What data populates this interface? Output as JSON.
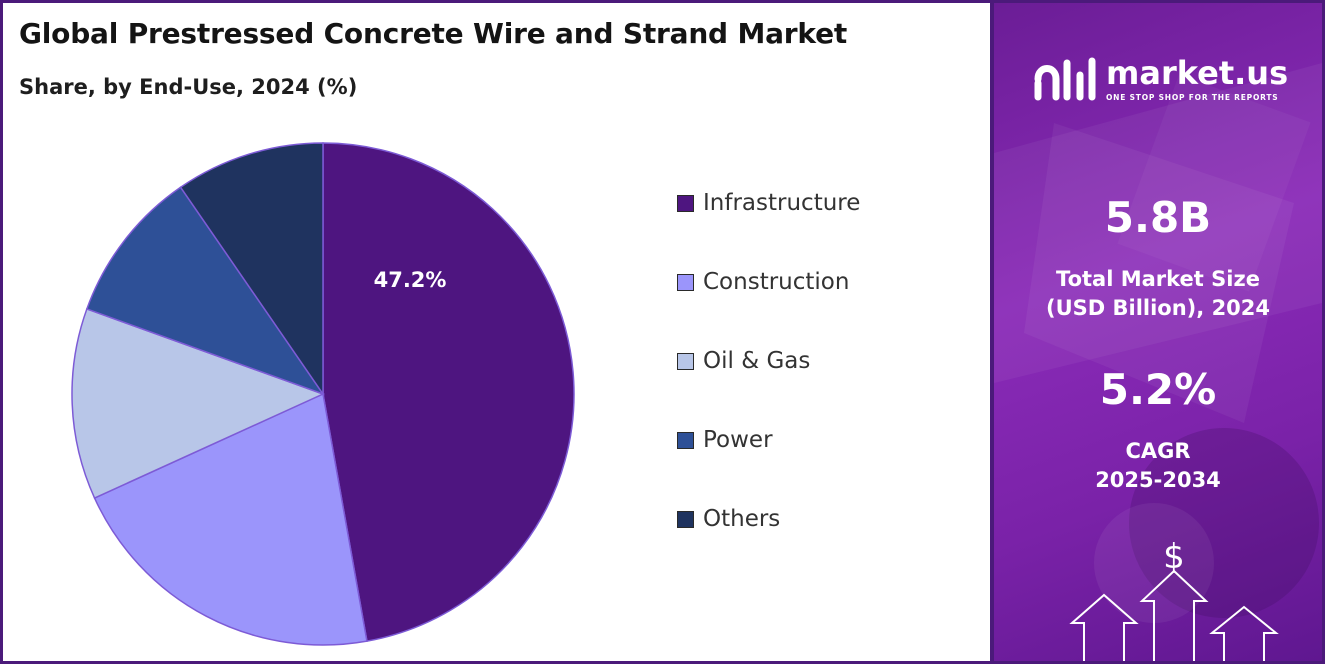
{
  "title": "Global Prestressed Concrete Wire and Strand Market",
  "subtitle": "Share, by End-Use, 2024 (%)",
  "chart_data": {
    "type": "pie",
    "title": "Global Prestressed Concrete Wire and Strand Market",
    "subtitle": "Share, by End-Use, 2024 (%)",
    "categories": [
      "Infrastructure",
      "Construction",
      "Oil & Gas",
      "Power",
      "Others"
    ],
    "values": [
      47.2,
      21.0,
      12.3,
      9.9,
      9.6
    ],
    "colors": [
      "#4e1580",
      "#9b95fb",
      "#b8c6e8",
      "#2e5097",
      "#1f335f"
    ],
    "data_labels": [
      "47.2%",
      "",
      "",
      "",
      ""
    ],
    "start_angle_deg": 0,
    "direction": "clockwise",
    "legend_position": "right"
  },
  "legend": [
    {
      "label": "Infrastructure",
      "color": "#4e1580"
    },
    {
      "label": "Construction",
      "color": "#9b95fb"
    },
    {
      "label": "Oil & Gas",
      "color": "#b8c6e8"
    },
    {
      "label": "Power",
      "color": "#2e5097"
    },
    {
      "label": "Others",
      "color": "#1f335f"
    }
  ],
  "brand": {
    "name": "market.us",
    "tagline": "ONE STOP SHOP FOR THE REPORTS"
  },
  "stats": {
    "market_size_value": "5.8B",
    "market_size_label_1": "Total Market Size",
    "market_size_label_2": "(USD Billion), 2024",
    "cagr_value": "5.2%",
    "cagr_label_1": "CAGR",
    "cagr_label_2": "2025-2034"
  },
  "deco_symbol": "$",
  "colors": {
    "panel_accent": "#7a22a8",
    "border": "#4b1a7a"
  }
}
